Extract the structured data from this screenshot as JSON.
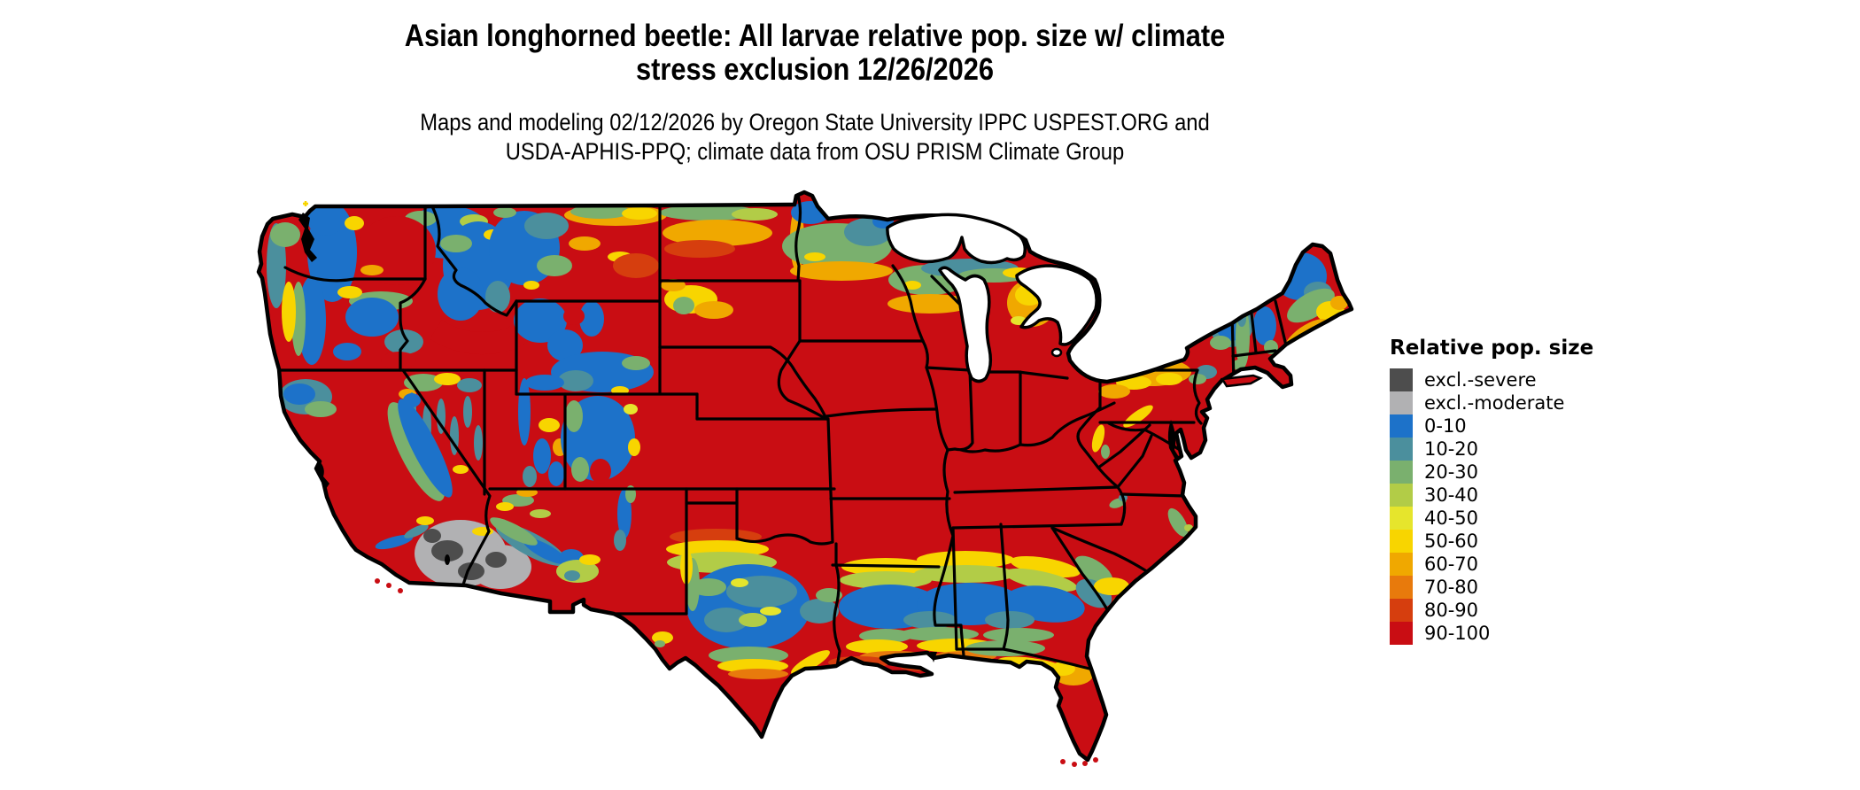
{
  "header": {
    "title_line1": "Asian longhorned beetle: All larvae relative pop. size w/ climate",
    "title_line2": "stress exclusion 12/26/2026",
    "subtitle_line1": "Maps and modeling 02/12/2026 by Oregon State University IPPC USPEST.ORG and",
    "subtitle_line2": "USDA-APHIS-PPQ; climate data from OSU PRISM Climate Group"
  },
  "legend": {
    "title": "Relative pop. size",
    "items": [
      {
        "label": "excl.-severe",
        "color": "#4d4d4d"
      },
      {
        "label": "excl.-moderate",
        "color": "#b1b1b3"
      },
      {
        "label": "0-10",
        "color": "#1d72c9"
      },
      {
        "label": "10-20",
        "color": "#4b8f9d"
      },
      {
        "label": "20-30",
        "color": "#7ab06e"
      },
      {
        "label": "30-40",
        "color": "#b2cc47"
      },
      {
        "label": "40-50",
        "color": "#e6e52c"
      },
      {
        "label": "50-60",
        "color": "#f8d500"
      },
      {
        "label": "60-70",
        "color": "#f0a800"
      },
      {
        "label": "70-80",
        "color": "#e87a0c"
      },
      {
        "label": "80-90",
        "color": "#d63e0e"
      },
      {
        "label": "90-100",
        "color": "#c90d13"
      }
    ]
  },
  "map": {
    "region": "Contiguous United States",
    "border_color": "#000000",
    "water_color": "#ffffff",
    "dominant_class": "90-100"
  },
  "chart_data": {
    "type": "heatmap",
    "title": "Asian longhorned beetle: All larvae relative pop. size w/ climate stress exclusion 12/26/2026",
    "legend_title": "Relative pop. size",
    "classes": [
      "excl.-severe",
      "excl.-moderate",
      "0-10",
      "10-20",
      "20-30",
      "30-40",
      "40-50",
      "50-60",
      "60-70",
      "70-80",
      "80-90",
      "90-100"
    ],
    "class_colors": [
      "#4d4d4d",
      "#b1b1b3",
      "#1d72c9",
      "#4b8f9d",
      "#7ab06e",
      "#b2cc47",
      "#e6e52c",
      "#f8d500",
      "#f0a800",
      "#e87a0c",
      "#d63e0e",
      "#c90d13"
    ],
    "regional_summary": [
      {
        "region": "Central/Eastern US interior, California valleys, Florida, south Texas",
        "class": "90-100"
      },
      {
        "region": "Cascades, Rockies, Sierra Nevada, high mountain West",
        "class": "0-10 to 30-40"
      },
      {
        "region": "Gulf Coast inland band (central TX, LA, MS, AL, GA, coastal SC)",
        "class": "0-10 to 30-40"
      },
      {
        "region": "Immediate Gulf shoreline",
        "class": "60-70 to 90-100"
      },
      {
        "region": "Northern border (MT/ND/MN/WI/upper MI, northern Maine)",
        "class": "10-20 to 70-80"
      },
      {
        "region": "SE California / SW Arizona deserts",
        "class": "excl.-moderate and excl.-severe"
      },
      {
        "region": "Adirondacks, northern New England mountains",
        "class": "0-10 to 30-40"
      }
    ]
  }
}
